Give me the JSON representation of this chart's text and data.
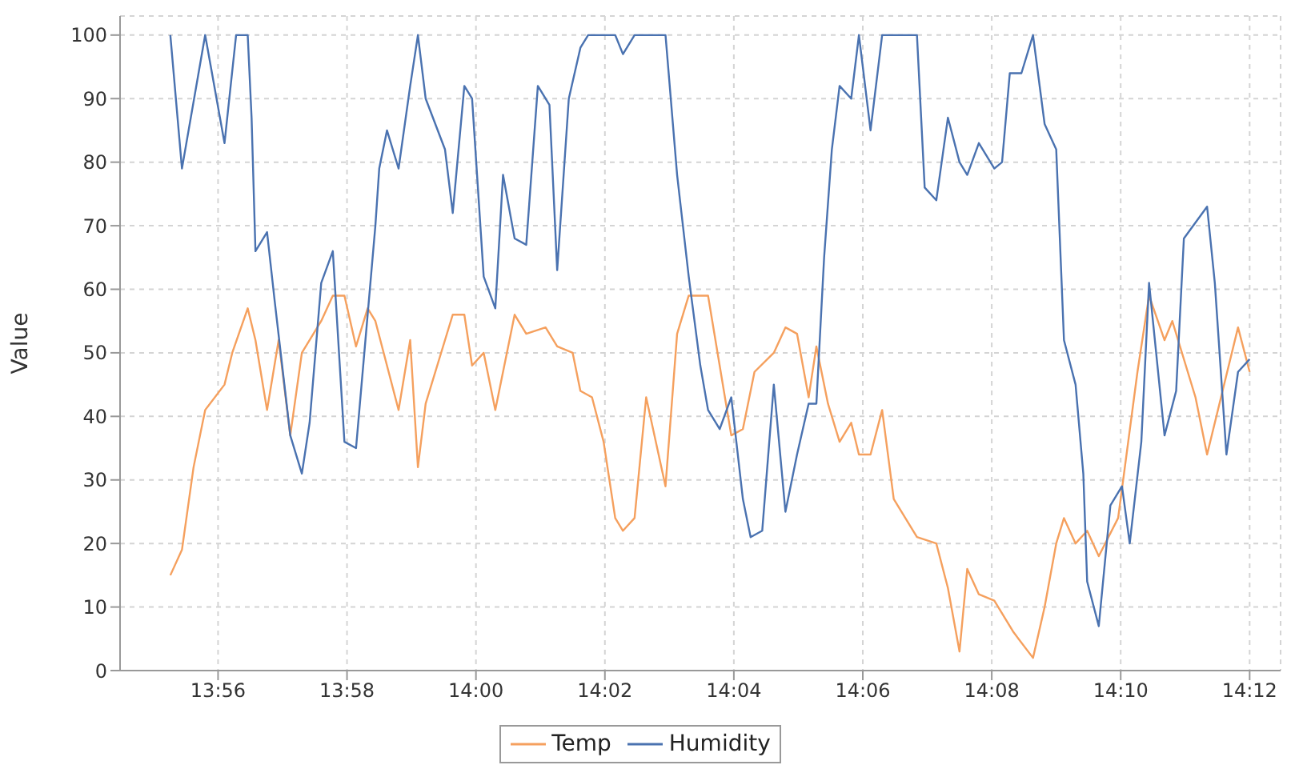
{
  "chart_data": {
    "type": "line",
    "ylabel": "Value",
    "xlim": [
      13.908,
      14.208
    ],
    "ylim": [
      0,
      103
    ],
    "xticks": [
      {
        "value": 13.933333,
        "label": "13:56"
      },
      {
        "value": 13.966667,
        "label": "13:58"
      },
      {
        "value": 14,
        "label": "14:00"
      },
      {
        "value": 14.033333,
        "label": "14:02"
      },
      {
        "value": 14.066667,
        "label": "14:04"
      },
      {
        "value": 14.1,
        "label": "14:06"
      },
      {
        "value": 14.133333,
        "label": "14:08"
      },
      {
        "value": 14.166667,
        "label": "14:10"
      },
      {
        "value": 14.2,
        "label": "14:12"
      }
    ],
    "yticks": [
      0,
      10,
      20,
      30,
      40,
      50,
      60,
      70,
      80,
      90,
      100
    ],
    "grid": true,
    "legend": "bottom",
    "marker": "none",
    "line_style": "solid",
    "series": [
      {
        "name": "Temp",
        "color": "#f5a05e",
        "x": [
          13.921,
          13.924,
          13.927,
          13.93,
          13.935,
          13.937,
          13.941,
          13.943,
          13.946,
          13.949,
          13.952,
          13.955,
          13.96,
          13.963,
          13.966,
          13.969,
          13.972,
          13.974,
          13.98,
          13.983,
          13.985,
          13.987,
          13.994,
          13.997,
          13.999,
          14.002,
          14.005,
          14.01,
          14.013,
          14.018,
          14.021,
          14.025,
          14.027,
          14.03,
          14.033,
          14.036,
          14.038,
          14.041,
          14.044,
          14.049,
          14.052,
          14.055,
          14.06,
          14.066,
          14.069,
          14.072,
          14.077,
          14.08,
          14.083,
          14.086,
          14.088,
          14.091,
          14.094,
          14.097,
          14.099,
          14.102,
          14.105,
          14.108,
          14.114,
          14.119,
          14.122,
          14.125,
          14.127,
          14.13,
          14.134,
          14.139,
          14.144,
          14.147,
          14.15,
          14.152,
          14.155,
          14.158,
          14.161,
          14.166,
          14.171,
          14.174,
          14.178,
          14.18,
          14.186,
          14.189,
          14.193,
          14.197,
          14.2
        ],
        "values": [
          15,
          19,
          32,
          41,
          45,
          50,
          57,
          52,
          41,
          52,
          37,
          50,
          55,
          59,
          59,
          51,
          57,
          55,
          41,
          52,
          32,
          42,
          56,
          56,
          48,
          50,
          41,
          56,
          53,
          54,
          51,
          50,
          44,
          43,
          36,
          24,
          22,
          24,
          43,
          29,
          53,
          59,
          59,
          37,
          38,
          47,
          50,
          54,
          53,
          43,
          51,
          42,
          36,
          39,
          34,
          34,
          41,
          27,
          21,
          20,
          13,
          3,
          16,
          12,
          11,
          6,
          2,
          10,
          20,
          24,
          20,
          22,
          18,
          24,
          47,
          59,
          52,
          55,
          43,
          34,
          44,
          54,
          47
        ]
      },
      {
        "name": "Humidity",
        "color": "#4a72b0",
        "x": [
          13.921,
          13.924,
          13.93,
          13.935,
          13.938,
          13.941,
          13.942,
          13.943,
          13.946,
          13.948,
          13.952,
          13.955,
          13.957,
          13.96,
          13.963,
          13.966,
          13.969,
          13.971,
          13.974,
          13.975,
          13.977,
          13.98,
          13.983,
          13.985,
          13.987,
          13.992,
          13.994,
          13.997,
          13.999,
          14.002,
          14.005,
          14.007,
          14.01,
          14.013,
          14.016,
          14.019,
          14.021,
          14.024,
          14.027,
          14.029,
          14.036,
          14.038,
          14.041,
          14.049,
          14.052,
          14.055,
          14.058,
          14.06,
          14.063,
          14.066,
          14.069,
          14.071,
          14.074,
          14.077,
          14.08,
          14.083,
          14.086,
          14.088,
          14.09,
          14.092,
          14.094,
          14.097,
          14.099,
          14.102,
          14.105,
          14.114,
          14.116,
          14.119,
          14.122,
          14.125,
          14.127,
          14.13,
          14.134,
          14.136,
          14.138,
          14.141,
          14.144,
          14.147,
          14.15,
          14.152,
          14.155,
          14.157,
          14.158,
          14.161,
          14.164,
          14.167,
          14.169,
          14.172,
          14.174,
          14.178,
          14.181,
          14.183,
          14.189,
          14.191,
          14.194,
          14.197,
          14.2
        ],
        "values": [
          100,
          79,
          100,
          83,
          100,
          100,
          87,
          66,
          69,
          58,
          37,
          31,
          39,
          61,
          66,
          36,
          35,
          49,
          70,
          79,
          85,
          79,
          92,
          100,
          90,
          82,
          72,
          92,
          90,
          62,
          57,
          78,
          68,
          67,
          92,
          89,
          63,
          90,
          98,
          100,
          100,
          97,
          100,
          100,
          78,
          62,
          48,
          41,
          38,
          43,
          27,
          21,
          22,
          45,
          25,
          34,
          42,
          42,
          65,
          82,
          92,
          90,
          100,
          85,
          100,
          100,
          76,
          74,
          87,
          80,
          78,
          83,
          79,
          80,
          94,
          94,
          100,
          86,
          82,
          52,
          45,
          31,
          14,
          7,
          26,
          29,
          20,
          36,
          61,
          37,
          44,
          68,
          73,
          61,
          34,
          47,
          49
        ]
      }
    ]
  }
}
